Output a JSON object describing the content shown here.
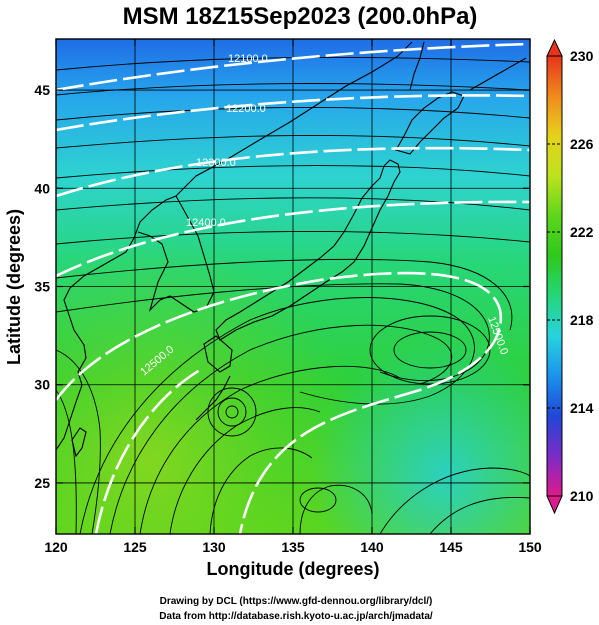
{
  "figure": {
    "title": "MSM 18Z15Sep2023 (200.0hPa)",
    "xlabel": "Longitude (degrees)",
    "ylabel": "Latitude  (degrees)",
    "credit_line1": "Drawing by DCL (https://www.gfd-dennou.org/library/dcl/)",
    "credit_line2": "Data from http://database.rish.kyoto-u.ac.jp/arch/jmadata/"
  },
  "map": {
    "lon_range": [
      120,
      150
    ],
    "lat_range": [
      22.4,
      47.6
    ],
    "lon_ticks": [
      "120",
      "125",
      "130",
      "135",
      "140",
      "145",
      "150"
    ],
    "lat_ticks": [
      "25",
      "30",
      "35",
      "40",
      "45"
    ],
    "grid": true,
    "coastline_color": "#000000",
    "streamline_color": "#000000",
    "contour_color": "#ffffff"
  },
  "contours": [
    {
      "label": "12100.0"
    },
    {
      "label": "12200.0"
    },
    {
      "label": "12300.0"
    },
    {
      "label": "12400.0"
    },
    {
      "label": "12500.0"
    },
    {
      "label": "12500.0"
    }
  ],
  "colorbar": {
    "min": 210,
    "max": 230,
    "ticks": [
      "230",
      "226",
      "222",
      "218",
      "214",
      "210"
    ],
    "colors": [
      "#e0198c",
      "#7b2cc6",
      "#2146d8",
      "#1a93ec",
      "#27d3df",
      "#24d67a",
      "#2fc81c",
      "#5dd61b",
      "#bde21c",
      "#e6d21b",
      "#f08a1c",
      "#e8341c"
    ]
  }
}
